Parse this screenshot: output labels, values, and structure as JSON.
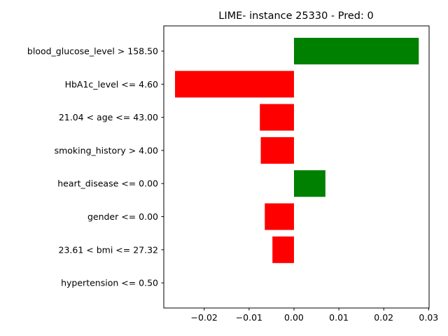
{
  "chart_data": {
    "type": "bar",
    "orientation": "horizontal",
    "title": "LIME- instance 25330 - Pred: 0",
    "xlabel": "",
    "ylabel": "",
    "categories": [
      "blood_glucose_level > 158.50",
      "HbA1c_level <= 4.60",
      "21.04 < age <= 43.00",
      "smoking_history > 4.00",
      "heart_disease <= 0.00",
      "gender <= 0.00",
      "23.61 < bmi <= 27.32",
      "hypertension <= 0.50"
    ],
    "values": [
      0.0278,
      -0.0265,
      -0.0076,
      -0.0074,
      0.007,
      -0.0065,
      -0.0048,
      0.0
    ],
    "xlim": [
      -0.029,
      0.0301
    ],
    "xticks": [
      -0.02,
      -0.01,
      0.0,
      0.01,
      0.02,
      0.03
    ],
    "xtick_labels": [
      "−0.02",
      "−0.01",
      "0.00",
      "0.01",
      "0.02",
      "0.03"
    ],
    "positive_color": "#008000",
    "negative_color": "#ff0000",
    "grid": false,
    "legend": "none"
  }
}
